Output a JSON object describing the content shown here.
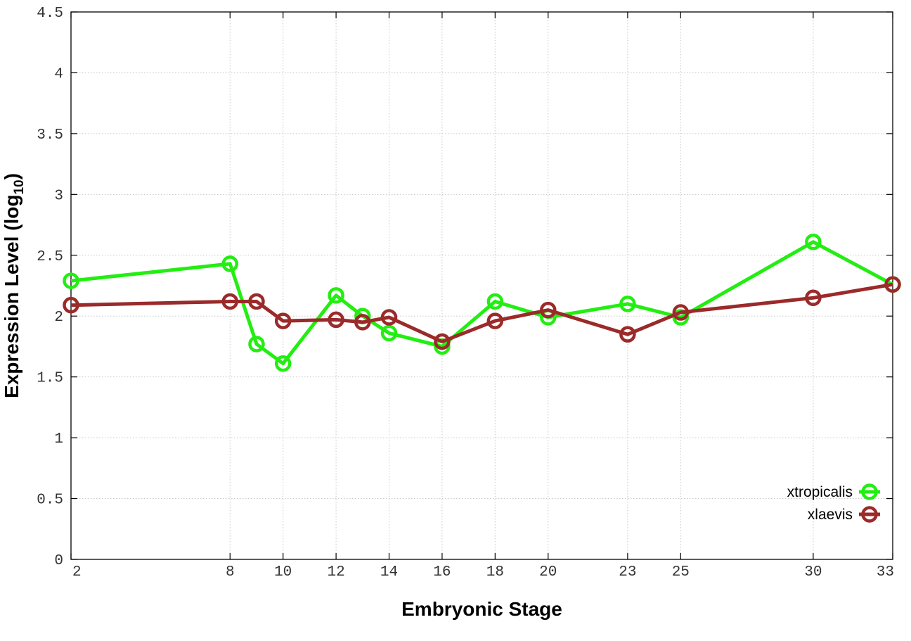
{
  "chart_data": {
    "type": "line",
    "xlabel": "Embryonic Stage",
    "ylabel_main": "Expression Level (log",
    "ylabel_sub": "10",
    "ylabel_close": ")",
    "xlim": [
      2,
      33
    ],
    "ylim": [
      0,
      4.5
    ],
    "x_ticks": [
      2,
      8,
      10,
      12,
      14,
      16,
      18,
      20,
      23,
      25,
      30,
      33
    ],
    "y_ticks": [
      0,
      0.5,
      1,
      1.5,
      2,
      2.5,
      3,
      3.5,
      4,
      4.5
    ],
    "y_tick_labels": [
      "0",
      "0.5",
      "1",
      "1.5",
      "2",
      "2.5",
      "3",
      "3.5",
      "4",
      "4.5"
    ],
    "grid": true,
    "legend_position": "bottom-right",
    "x": [
      2,
      8,
      9,
      10,
      12,
      13,
      14,
      16,
      18,
      20,
      23,
      25,
      30,
      33
    ],
    "series": [
      {
        "name": "xtropicalis",
        "color": "#22ee11",
        "values": [
          2.29,
          2.43,
          1.77,
          1.61,
          2.17,
          2.0,
          1.86,
          1.75,
          2.12,
          1.99,
          2.1,
          1.99,
          2.61,
          2.26
        ]
      },
      {
        "name": "xlaevis",
        "color": "#9b2a2a",
        "values": [
          2.09,
          2.12,
          2.12,
          1.96,
          1.97,
          1.95,
          1.99,
          1.79,
          1.96,
          2.05,
          1.85,
          2.03,
          2.15,
          2.26
        ]
      }
    ]
  }
}
